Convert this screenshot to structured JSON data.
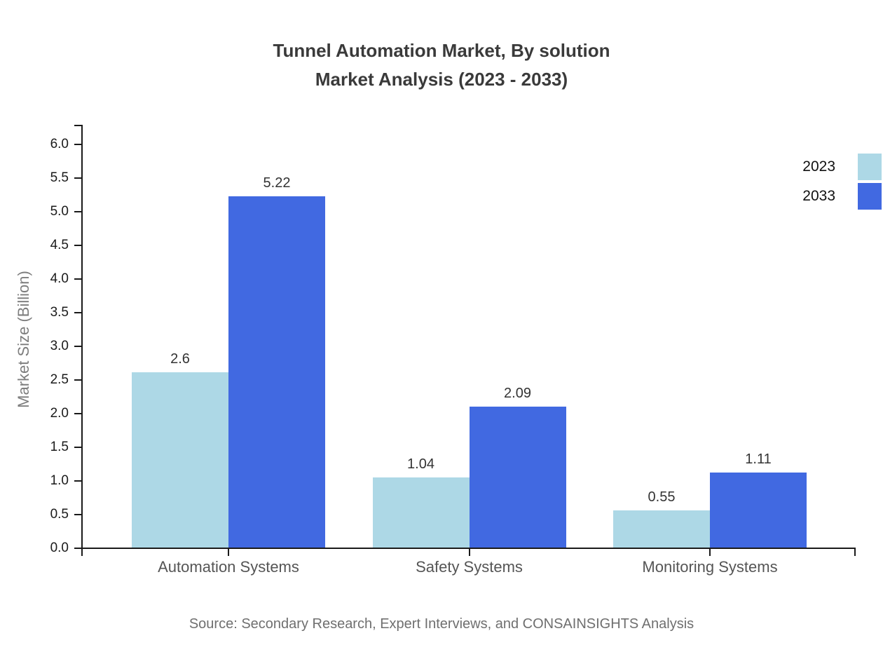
{
  "title": {
    "line1": "Tunnel Automation Market, By solution",
    "line2": "Market Analysis (2023 - 2033)"
  },
  "source": "Source: Secondary Research, Expert Interviews, and CONSAINSIGHTS Analysis",
  "colors": {
    "series_2023": "#ADD8E6",
    "series_2033": "#4169E1",
    "axis": "#1a1a1a",
    "title_text": "#3a3a3a",
    "muted_text": "#6f6f6f"
  },
  "chart_data": {
    "type": "bar",
    "title": "Tunnel Automation Market, By solution Market Analysis (2023 - 2033)",
    "categories": [
      "Automation Systems",
      "Safety Systems",
      "Monitoring Systems"
    ],
    "series": [
      {
        "name": "2023",
        "color": "#ADD8E6",
        "values": [
          2.6,
          1.04,
          0.55
        ],
        "value_labels": [
          "2.6",
          "1.04",
          "0.55"
        ]
      },
      {
        "name": "2033",
        "color": "#4169E1",
        "values": [
          5.22,
          2.09,
          1.11
        ],
        "value_labels": [
          "5.22",
          "2.09",
          "1.11"
        ]
      }
    ],
    "xlabel": "",
    "ylabel": "Market Size (Billion)",
    "ylim": [
      0,
      6
    ],
    "ytick_step": 0.5,
    "grid": false,
    "legend_position": "right"
  }
}
